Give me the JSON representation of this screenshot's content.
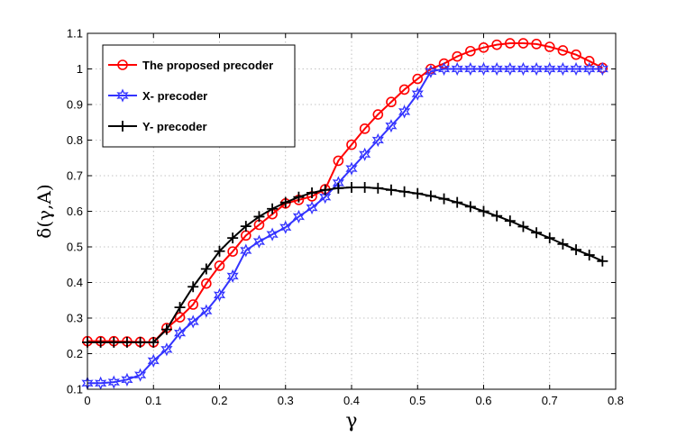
{
  "chart_data": {
    "type": "line",
    "title": "",
    "xlabel": "γ",
    "ylabel": "δ(γ,A)",
    "xlim": [
      0,
      0.8
    ],
    "ylim": [
      0.1,
      1.1
    ],
    "xticks": [
      "0",
      "0.1",
      "0.2",
      "0.3",
      "0.4",
      "0.5",
      "0.6",
      "0.7",
      "0.8"
    ],
    "yticks": [
      "0.1",
      "0.2",
      "0.3",
      "0.4",
      "0.5",
      "0.6",
      "0.7",
      "0.8",
      "0.9",
      "1",
      "1.1"
    ],
    "grid": true,
    "legend_position": "top-left",
    "x": [
      0,
      0.02,
      0.04,
      0.06,
      0.08,
      0.1,
      0.12,
      0.14,
      0.16,
      0.18,
      0.2,
      0.22,
      0.24,
      0.26,
      0.28,
      0.3,
      0.32,
      0.34,
      0.36,
      0.38,
      0.4,
      0.42,
      0.44,
      0.46,
      0.48,
      0.5,
      0.52,
      0.54,
      0.56,
      0.58,
      0.6,
      0.62,
      0.64,
      0.66,
      0.68,
      0.7,
      0.72,
      0.74,
      0.76,
      0.78
    ],
    "series": [
      {
        "name": "The proposed precoder",
        "color": "#ff0000",
        "marker": "circle",
        "values": [
          0.235,
          0.235,
          0.235,
          0.234,
          0.233,
          0.232,
          0.272,
          0.302,
          0.338,
          0.397,
          0.447,
          0.487,
          0.532,
          0.562,
          0.592,
          0.622,
          0.632,
          0.642,
          0.662,
          0.742,
          0.787,
          0.832,
          0.872,
          0.907,
          0.942,
          0.972,
          1.0,
          1.015,
          1.035,
          1.05,
          1.06,
          1.068,
          1.072,
          1.072,
          1.07,
          1.062,
          1.052,
          1.04,
          1.022,
          1.003
        ]
      },
      {
        "name": "X- precoder",
        "color": "#3333ff",
        "marker": "star",
        "values": [
          0.117,
          0.117,
          0.12,
          0.127,
          0.14,
          0.18,
          0.212,
          0.258,
          0.29,
          0.32,
          0.365,
          0.418,
          0.49,
          0.515,
          0.535,
          0.555,
          0.585,
          0.61,
          0.64,
          0.68,
          0.72,
          0.76,
          0.8,
          0.84,
          0.88,
          0.93,
          0.993,
          1.0,
          1.0,
          1.0,
          1.0,
          1.0,
          1.0,
          1.0,
          1.0,
          1.0,
          1.0,
          1.0,
          1.0,
          1.0
        ]
      },
      {
        "name": "Y- precoder",
        "color": "#000000",
        "marker": "plus",
        "values": [
          0.232,
          0.232,
          0.232,
          0.232,
          0.232,
          0.232,
          0.268,
          0.33,
          0.388,
          0.438,
          0.488,
          0.525,
          0.558,
          0.585,
          0.607,
          0.625,
          0.64,
          0.652,
          0.66,
          0.665,
          0.667,
          0.667,
          0.665,
          0.66,
          0.655,
          0.65,
          0.643,
          0.635,
          0.625,
          0.613,
          0.6,
          0.587,
          0.573,
          0.557,
          0.54,
          0.525,
          0.508,
          0.492,
          0.477,
          0.46
        ]
      }
    ]
  }
}
